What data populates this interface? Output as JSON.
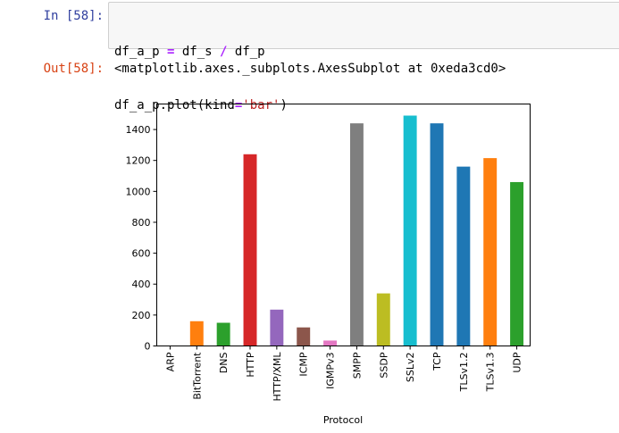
{
  "cells": {
    "input": {
      "prompt": "In [58]:",
      "lines": [
        [
          {
            "t": "df_a_p ",
            "c": ""
          },
          {
            "t": "=",
            "c": "op"
          },
          {
            "t": " df_s ",
            "c": ""
          },
          {
            "t": "/",
            "c": "op"
          },
          {
            "t": " df_p",
            "c": ""
          }
        ],
        [
          {
            "t": "df_a_p.plot(kind",
            "c": ""
          },
          {
            "t": "=",
            "c": "op"
          },
          {
            "t": "'bar'",
            "c": "str"
          },
          {
            "t": ")",
            "c": ""
          }
        ]
      ]
    },
    "output": {
      "prompt": "Out[58]:",
      "text": "<matplotlib.axes._subplots.AxesSubplot at 0xeda3cd0>"
    }
  },
  "chart_data": {
    "type": "bar",
    "categories": [
      "ARP",
      "BitTorrent",
      "DNS",
      "HTTP",
      "HTTP/XML",
      "ICMP",
      "IGMPv3",
      "SMPP",
      "SSDP",
      "SSLv2",
      "TCP",
      "TLSv1.2",
      "TLSv1.3",
      "UDP"
    ],
    "values": [
      0,
      160,
      150,
      1240,
      235,
      120,
      35,
      1440,
      340,
      1490,
      1440,
      1160,
      1215,
      1060
    ],
    "colors": [
      "#1f77b4",
      "#ff7f0e",
      "#2ca02c",
      "#d62728",
      "#9467bd",
      "#8c564b",
      "#e377c2",
      "#7f7f7f",
      "#bcbd22",
      "#17becf",
      "#1f77b4",
      "#1f77b4",
      "#ff7f0e",
      "#2ca02c"
    ],
    "yticks": [
      0,
      200,
      400,
      600,
      800,
      1000,
      1200,
      1400
    ],
    "ylim": [
      0,
      1565
    ],
    "xlabel": "Protocol",
    "ylabel": "",
    "title": "",
    "grid": false,
    "legend": "none"
  }
}
